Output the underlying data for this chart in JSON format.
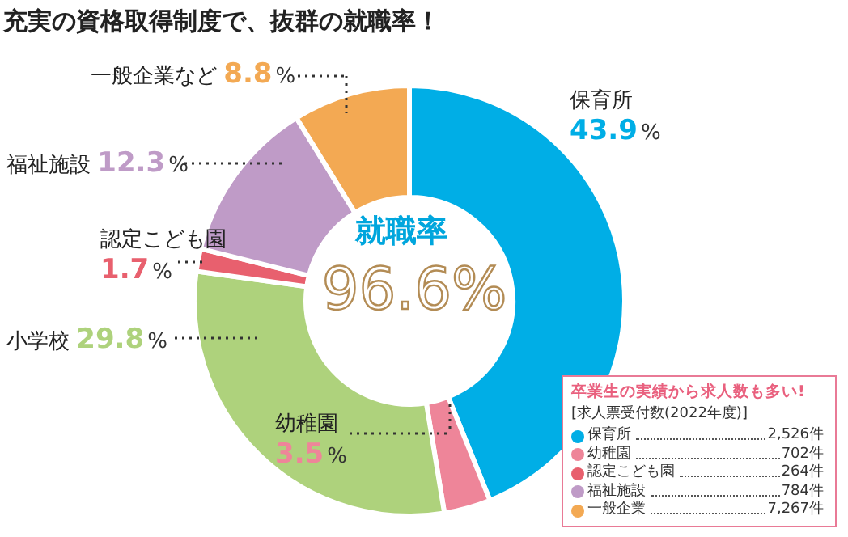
{
  "chart_data": {
    "type": "donut",
    "title": "充実の資格取得制度で、抜群の就職率！",
    "categories": [
      "保育所",
      "幼稚園",
      "小学校",
      "認定こども園",
      "福祉施設",
      "一般企業など"
    ],
    "values": [
      43.9,
      3.5,
      29.8,
      1.7,
      12.3,
      8.8
    ],
    "colors": [
      "#00aee6",
      "#ee8599",
      "#aed27c",
      "#e8606e",
      "#bf9bc7",
      "#f3a953"
    ],
    "value_labels": [
      "43.9%",
      "3.5%",
      "29.8%",
      "1.7%",
      "12.3%",
      "8.8%"
    ],
    "annotations": [
      "就職率",
      "96.6%",
      "卒業生の実績から求人数も多い!",
      "[求人票受付数(2022年度)]",
      "保育所 2,526件",
      "幼稚園 702件",
      "認定こども園 264件",
      "福祉施設 784件",
      "一般企業 7,267件"
    ]
  }
}
